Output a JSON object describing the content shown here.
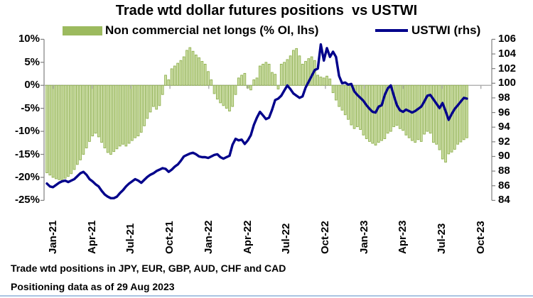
{
  "title": "Trade wtd dollar futures positions  vs USTWI",
  "legend": {
    "bar_label": "Non commercial net longs (% OI, lhs)",
    "line_label": "USTWI (rhs)"
  },
  "footnotes": {
    "line1": "Trade wtd positions in JPY, EUR, GBP, AUD, CHF and CAD",
    "line2": "Positioning data as of 29 Aug 2023"
  },
  "colors": {
    "bar_fill": "#cedfa8",
    "bar_stroke": "#8fb04e",
    "legend_swatch_green": "#9cba5e",
    "line_navy": "#00008b",
    "zero_gridline": "#a6a6a6",
    "axis_gray": "#7f7f7f",
    "text_black": "#000000",
    "bottom_rule_blue": "#aac4e2"
  },
  "chart_data": {
    "type": "combo (bar + line, dual axis)",
    "x_start": "2021-01-05",
    "x_end": "2023-08-29",
    "x_frequency": "weekly",
    "x_tick_labels": [
      "Jan-21",
      "Apr-21",
      "Jul-21",
      "Oct-21",
      "Jan-22",
      "Apr-22",
      "Jul-22",
      "Oct-22",
      "Jan-23",
      "Apr-23",
      "Jul-23",
      "Oct-23"
    ],
    "left_axis": {
      "ticks": [
        "10%",
        "5%",
        "0%",
        "-5%",
        "-10%",
        "-15%",
        "-20%",
        "-25%"
      ],
      "max": 10,
      "min": -25,
      "unit": "% of open interest"
    },
    "right_axis": {
      "ticks": [
        "106",
        "104",
        "102",
        "100",
        "98",
        "96",
        "94",
        "92",
        "90",
        "88",
        "86",
        "84"
      ],
      "max": 106,
      "min": 84
    },
    "grid": "zero line only, x ticks drawn on zero axis",
    "legend_position": "top",
    "series": [
      {
        "name": "Non commercial net longs (% OI, lhs)",
        "type": "bar",
        "axis": "left",
        "values": [
          -19.0,
          -19.5,
          -20.0,
          -20.3,
          -20.5,
          -20.6,
          -20.2,
          -19.8,
          -19.2,
          -18.3,
          -17.2,
          -16.2,
          -15.0,
          -13.6,
          -12.2,
          -11.0,
          -10.4,
          -11.2,
          -12.4,
          -13.6,
          -14.6,
          -15.0,
          -14.4,
          -13.8,
          -13.2,
          -12.8,
          -13.2,
          -12.6,
          -12.0,
          -11.4,
          -11.0,
          -10.2,
          -8.8,
          -7.2,
          -5.8,
          -4.6,
          -5.2,
          -4.4,
          -2.0,
          2.2,
          1.2,
          3.6,
          4.2,
          4.8,
          5.4,
          6.2,
          7.6,
          8.2,
          7.4,
          6.6,
          6.0,
          5.2,
          4.6,
          3.0,
          1.2,
          -1.8,
          -3.0,
          -3.8,
          -4.4,
          -5.0,
          -5.6,
          -4.6,
          -2.0,
          1.6,
          2.2,
          2.6,
          -0.6,
          -1.0,
          1.2,
          1.6,
          4.2,
          4.6,
          5.0,
          4.6,
          2.8,
          2.4,
          -0.8,
          4.6,
          5.0,
          5.6,
          6.4,
          7.6,
          8.0,
          6.4,
          4.6,
          5.2,
          5.8,
          6.2,
          5.4,
          2.2,
          1.8,
          1.6,
          2.0,
          1.4,
          -1.6,
          -3.2,
          -4.6,
          -5.4,
          -6.4,
          -7.4,
          -8.6,
          -9.4,
          -9.0,
          -9.6,
          -10.8,
          -11.6,
          -12.2,
          -12.6,
          -13.0,
          -12.4,
          -12.0,
          -11.6,
          -10.4,
          -10.0,
          -9.0,
          -8.7,
          -9.4,
          -9.8,
          -10.8,
          -11.4,
          -12.0,
          -12.4,
          -11.8,
          -12.2,
          -10.6,
          -10.0,
          -10.4,
          -12.4,
          -12.8,
          -14.0,
          -16.0,
          -16.7,
          -14.9,
          -14.5,
          -13.9,
          -12.8,
          -12.3,
          -11.8,
          -11.4
        ]
      },
      {
        "name": "USTWI (rhs)",
        "type": "line",
        "axis": "right",
        "values": [
          86.3,
          85.9,
          85.8,
          86.1,
          86.4,
          86.6,
          86.7,
          86.5,
          86.7,
          86.9,
          87.3,
          87.7,
          87.9,
          87.5,
          86.9,
          86.6,
          86.2,
          85.9,
          85.3,
          84.8,
          84.5,
          84.3,
          84.3,
          84.5,
          85.0,
          85.4,
          85.9,
          86.3,
          86.6,
          86.9,
          86.7,
          86.4,
          86.8,
          87.2,
          87.5,
          87.7,
          88.0,
          88.2,
          88.4,
          88.3,
          87.9,
          88.2,
          88.6,
          88.9,
          89.4,
          90.0,
          90.2,
          90.4,
          90.5,
          90.3,
          90.0,
          89.9,
          89.9,
          89.8,
          90.0,
          90.2,
          90.3,
          89.9,
          89.7,
          89.9,
          90.1,
          91.6,
          92.4,
          92.2,
          92.3,
          91.7,
          92.2,
          92.9,
          94.3,
          95.3,
          96.1,
          95.6,
          95.1,
          95.3,
          96.4,
          97.7,
          97.9,
          98.3,
          99.0,
          99.7,
          99.2,
          98.6,
          98.3,
          98.0,
          98.2,
          99.4,
          100.2,
          101.0,
          101.8,
          102.0,
          105.3,
          103.1,
          104.8,
          103.6,
          104.3,
          103.6,
          101.0,
          100.0,
          100.1,
          99.8,
          99.9,
          98.9,
          98.4,
          98.0,
          97.6,
          97.0,
          96.5,
          96.1,
          96.0,
          96.8,
          97.0,
          98.4,
          99.3,
          99.7,
          98.3,
          97.0,
          96.3,
          96.1,
          96.4,
          96.2,
          96.0,
          96.2,
          96.5,
          96.8,
          97.5,
          98.3,
          98.4,
          97.8,
          97.2,
          96.6,
          97.3,
          96.2,
          95.0,
          95.8,
          96.5,
          97.0,
          97.5,
          98.0,
          97.9
        ]
      }
    ]
  }
}
